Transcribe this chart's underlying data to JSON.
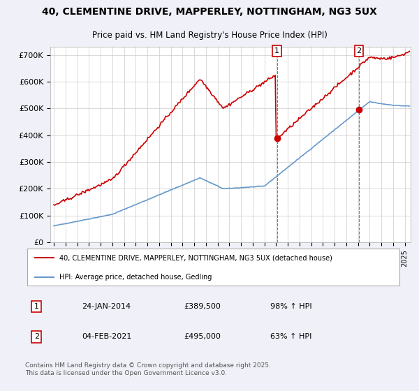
{
  "title_line1": "40, CLEMENTINE DRIVE, MAPPERLEY, NOTTINGHAM, NG3 5UX",
  "title_line2": "Price paid vs. HM Land Registry's House Price Index (HPI)",
  "yticks": [
    0,
    100000,
    200000,
    300000,
    400000,
    500000,
    600000,
    700000
  ],
  "ytick_labels": [
    "£0",
    "£100K",
    "£200K",
    "£300K",
    "£400K",
    "£500K",
    "£600K",
    "£700K"
  ],
  "xlim_start": 1994.7,
  "xlim_end": 2025.5,
  "ylim": [
    0,
    730000
  ],
  "red_line_color": "#cc0000",
  "blue_line_color": "#6699cc",
  "background_color": "#f0f0f8",
  "plot_bg_color": "#ffffff",
  "grid_color": "#cccccc",
  "legend_entry1": "40, CLEMENTINE DRIVE, MAPPERLEY, NOTTINGHAM, NG3 5UX (detached house)",
  "legend_entry2": "HPI: Average price, detached house, Gedling",
  "marker1_date": "24-JAN-2014",
  "marker1_price": "£389,500",
  "marker1_hpi": "98% ↑ HPI",
  "marker1_x": 2014.07,
  "marker1_y": 389500,
  "marker2_date": "04-FEB-2021",
  "marker2_price": "£495,000",
  "marker2_hpi": "63% ↑ HPI",
  "marker2_x": 2021.09,
  "marker2_y": 495000,
  "footer_text": "Contains HM Land Registry data © Crown copyright and database right 2025.\nThis data is licensed under the Open Government Licence v3.0.",
  "xtick_years": [
    1995,
    1996,
    1997,
    1998,
    1999,
    2000,
    2001,
    2002,
    2003,
    2004,
    2005,
    2006,
    2007,
    2008,
    2009,
    2010,
    2011,
    2012,
    2013,
    2014,
    2015,
    2016,
    2017,
    2018,
    2019,
    2020,
    2021,
    2022,
    2023,
    2024,
    2025
  ]
}
